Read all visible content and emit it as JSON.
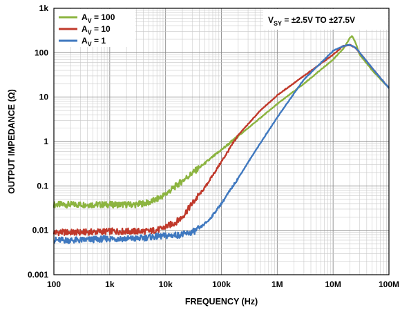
{
  "chart_data": {
    "type": "line",
    "title": "",
    "xlabel": "FREQUENCY (Hz)",
    "ylabel": "OUTPUT IMPEDANCE (Ω)",
    "xscale": "log",
    "yscale": "log",
    "xlim": [
      100,
      100000000
    ],
    "ylim": [
      0.001,
      1000
    ],
    "grid": true,
    "legend_position": "top-left",
    "annotation": {
      "main": "V",
      "sub": "SY",
      "rest": " = ±2.5V TO ±27.5V"
    },
    "x_ticks": [
      {
        "value": 100,
        "label": "100"
      },
      {
        "value": 1000,
        "label": "1k"
      },
      {
        "value": 10000,
        "label": "10k"
      },
      {
        "value": 100000,
        "label": "100k"
      },
      {
        "value": 1000000,
        "label": "1M"
      },
      {
        "value": 10000000,
        "label": "10M"
      },
      {
        "value": 100000000,
        "label": "100M"
      }
    ],
    "y_ticks": [
      {
        "value": 0.001,
        "label": "0.001"
      },
      {
        "value": 0.01,
        "label": "0.01"
      },
      {
        "value": 0.1,
        "label": "0.1"
      },
      {
        "value": 1,
        "label": "1"
      },
      {
        "value": 10,
        "label": "10"
      },
      {
        "value": 100,
        "label": "100"
      },
      {
        "value": 1000,
        "label": "1k"
      }
    ],
    "series": [
      {
        "legend_main": "A",
        "legend_sub": "V",
        "legend_rest": " = 100",
        "color": "#8CB440",
        "x": [
          100,
          300,
          1000,
          3000,
          5000,
          7000,
          10000,
          20000,
          50000,
          100000,
          300000,
          1000000,
          3000000,
          10000000,
          15000000,
          18000000,
          20000000,
          22000000,
          25000000,
          30000000,
          50000000,
          100000000
        ],
        "y": [
          0.038,
          0.038,
          0.038,
          0.038,
          0.042,
          0.05,
          0.065,
          0.13,
          0.32,
          0.65,
          2.0,
          7.0,
          20,
          70,
          120,
          170,
          220,
          240,
          170,
          90,
          40,
          16
        ]
      },
      {
        "legend_main": "A",
        "legend_sub": "V",
        "legend_rest": " = 10",
        "color": "#C0392B",
        "x": [
          100,
          300,
          1000,
          3000,
          5000,
          8000,
          10000,
          15000,
          20000,
          30000,
          50000,
          100000,
          200000,
          500000,
          1000000,
          3000000,
          10000000,
          15000000,
          20000000,
          25000000,
          30000000,
          50000000,
          100000000
        ],
        "y": [
          0.009,
          0.009,
          0.0095,
          0.0095,
          0.0095,
          0.0105,
          0.012,
          0.015,
          0.02,
          0.04,
          0.09,
          0.35,
          1.4,
          5.0,
          11,
          30,
          90,
          140,
          150,
          130,
          100,
          45,
          16
        ]
      },
      {
        "legend_main": "A",
        "legend_sub": "V",
        "legend_rest": " = 1",
        "color": "#3F78BF",
        "x": [
          100,
          300,
          1000,
          3000,
          5000,
          10000,
          20000,
          30000,
          40000,
          60000,
          100000,
          200000,
          400000,
          1000000,
          3000000,
          10000000,
          15000000,
          20000000,
          25000000,
          30000000,
          50000000,
          100000000
        ],
        "y": [
          0.006,
          0.006,
          0.0065,
          0.0065,
          0.007,
          0.0075,
          0.008,
          0.009,
          0.011,
          0.017,
          0.04,
          0.15,
          0.6,
          3.5,
          25,
          110,
          140,
          150,
          130,
          100,
          45,
          16
        ]
      }
    ]
  }
}
